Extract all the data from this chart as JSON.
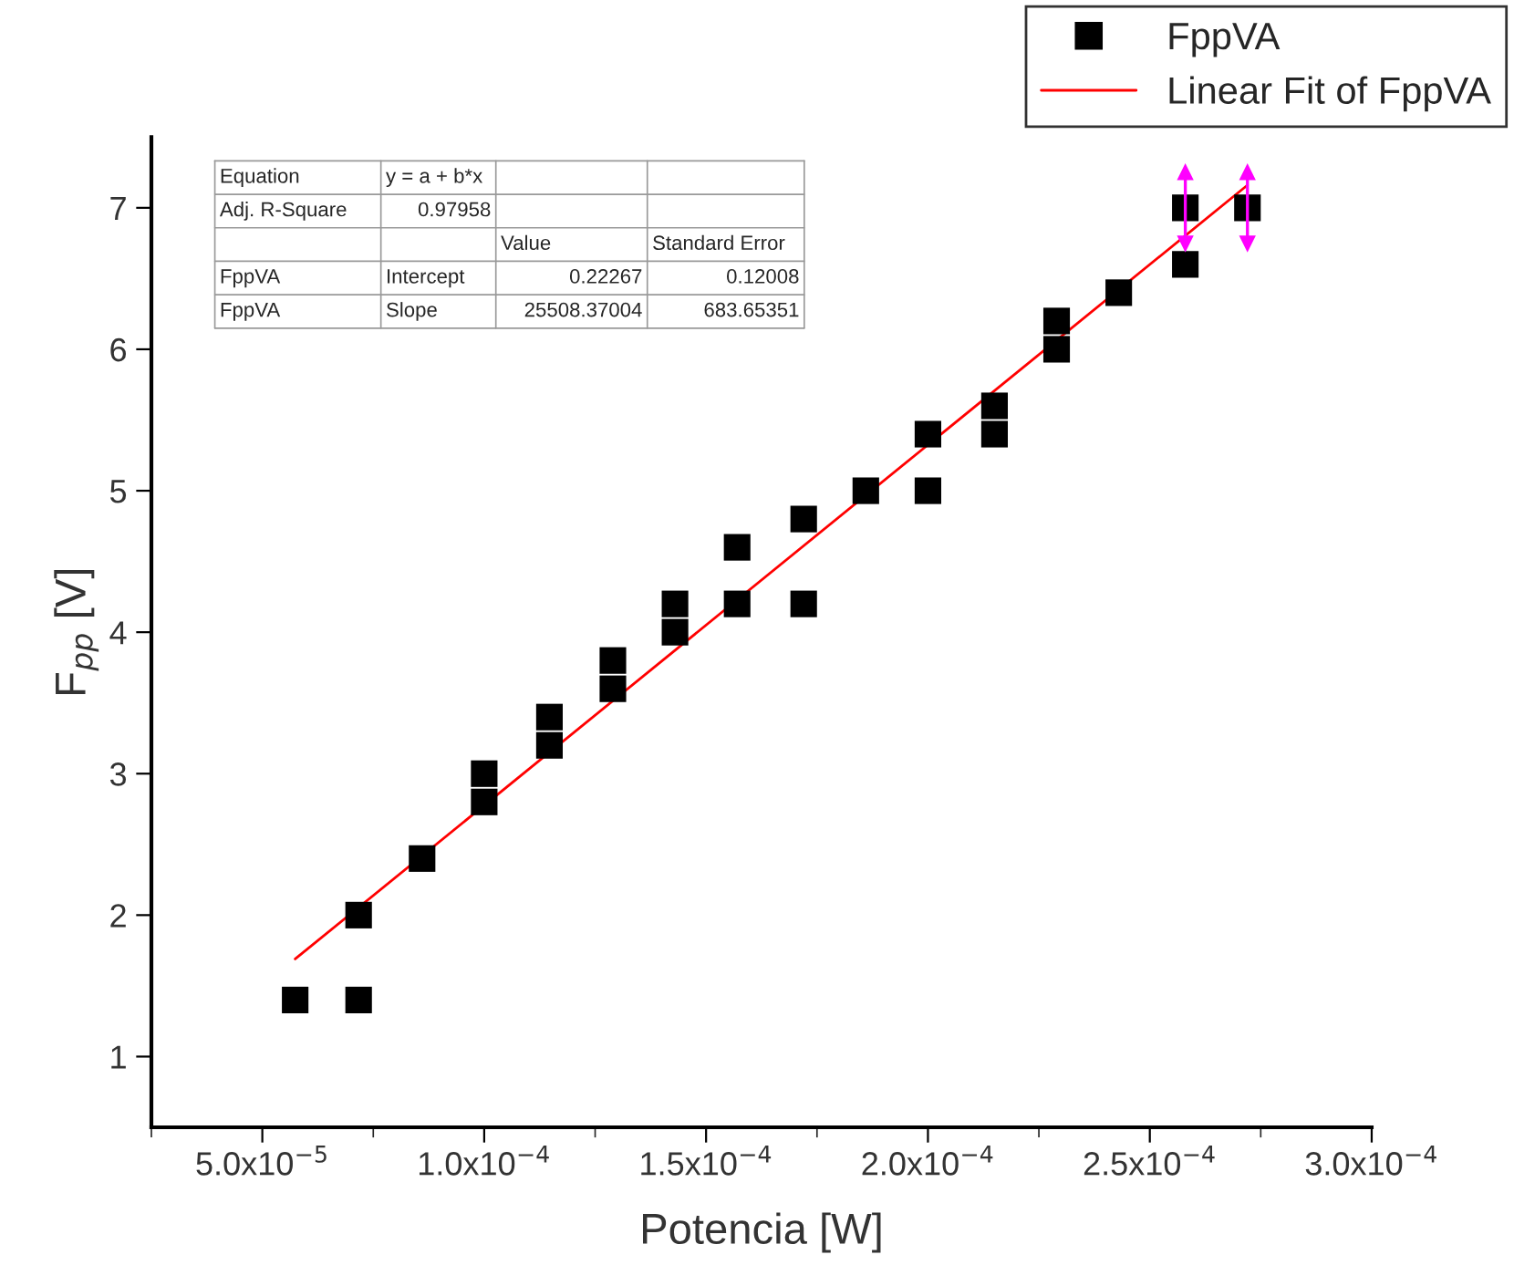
{
  "chart_data": {
    "type": "scatter",
    "xlabel": "Potencia [W]",
    "ylabel": "F$_{pp}$ [V]",
    "xlim": [
      2.5e-05,
      0.0003
    ],
    "ylim": [
      0.5,
      7.5
    ],
    "xticks": [
      {
        "value": 5e-05,
        "label": "5.0x10$^{−5}$"
      },
      {
        "value": 0.0001,
        "label": "1.0x10$^{−4}$"
      },
      {
        "value": 0.00015,
        "label": "1.5x10$^{−4}$"
      },
      {
        "value": 0.0002,
        "label": "2.0x10$^{−4}$"
      },
      {
        "value": 0.00025,
        "label": "2.5x10$^{−4}$"
      },
      {
        "value": 0.0003,
        "label": "3.0x10$^{−4}$"
      }
    ],
    "yticks": [
      1,
      2,
      3,
      4,
      5,
      6,
      7
    ],
    "grid": false,
    "legend": "top right",
    "series": [
      {
        "name": "FppVA",
        "color": "#000000",
        "marker": "square",
        "x": [
          5.74e-05,
          7.17e-05,
          7.17e-05,
          8.6e-05,
          0.0001,
          0.0001,
          0.0001147,
          0.0001147,
          0.000129,
          0.000129,
          0.000143,
          0.000143,
          0.000157,
          0.000157,
          0.000172,
          0.000172,
          0.000186,
          0.0002,
          0.0002,
          0.000215,
          0.000215,
          0.000229,
          0.000229,
          0.000243,
          0.000258,
          0.000258,
          0.000272
        ],
        "values": [
          1.4,
          2.0,
          1.4,
          2.4,
          3.0,
          2.8,
          3.4,
          3.2,
          3.8,
          3.6,
          4.2,
          4.0,
          4.6,
          4.2,
          4.8,
          4.2,
          5.0,
          5.4,
          5.0,
          5.6,
          5.4,
          6.2,
          6.0,
          6.4,
          7.0,
          6.6,
          7.0
        ],
        "errors": [
          null,
          null,
          null,
          null,
          null,
          null,
          null,
          null,
          null,
          null,
          null,
          null,
          null,
          null,
          null,
          null,
          null,
          null,
          null,
          null,
          null,
          null,
          null,
          null,
          0.25,
          null,
          0.25
        ]
      },
      {
        "name": "Linear Fit of FppVA",
        "type": "line",
        "color": "#ff0000",
        "line_style": "solid",
        "x": [
          5.74e-05,
          0.000272
        ],
        "values": [
          1.69,
          7.16
        ]
      }
    ],
    "annotations": [
      "Equation",
      "y = a + b*x",
      "Adj. R-Square",
      "0.97958",
      "Value",
      "Standard Error",
      "FppVA",
      "Intercept",
      "0.22267",
      "0.12008",
      "FppVA",
      "Slope",
      "25508.37004",
      "683.65351"
    ]
  }
}
